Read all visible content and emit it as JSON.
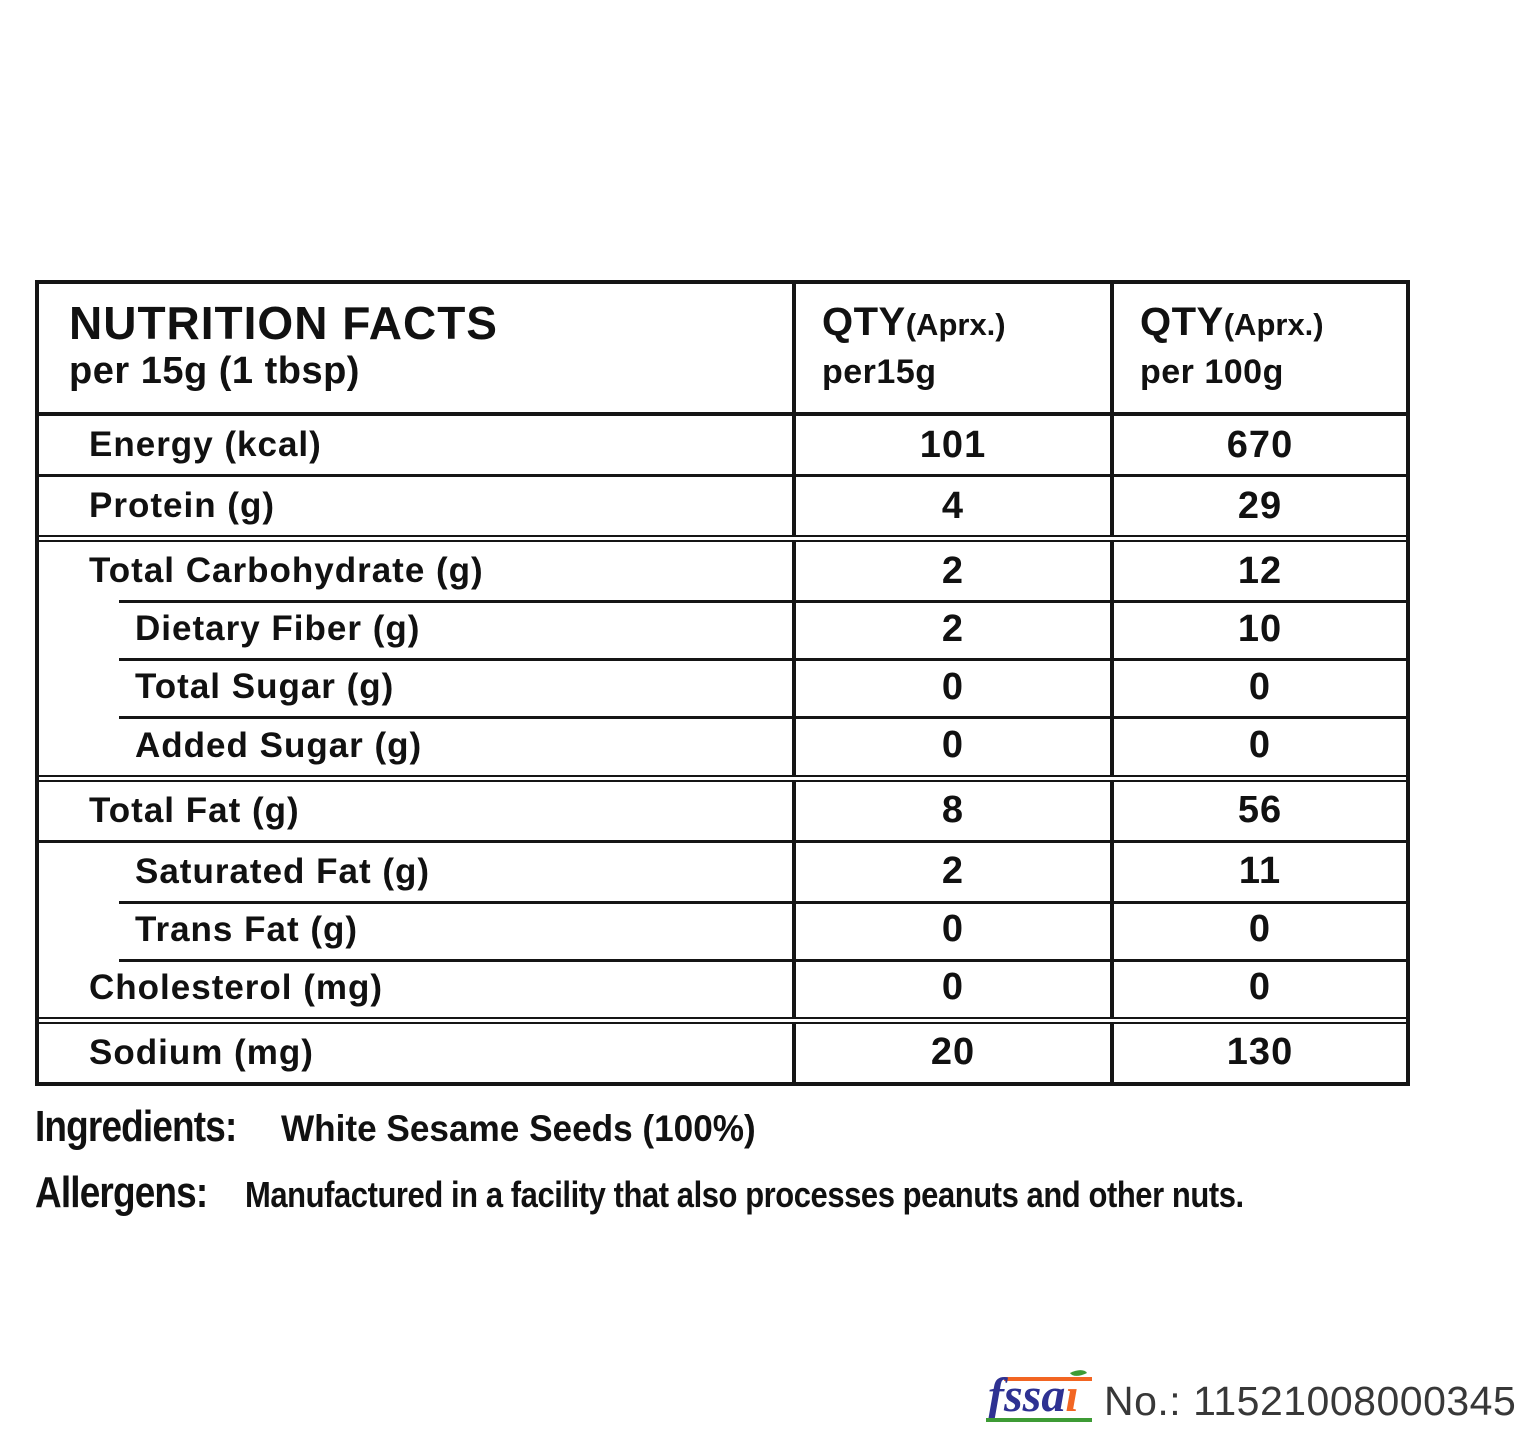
{
  "table": {
    "header": {
      "title": "NUTRITION FACTS",
      "subtitle": "per 15g (1 tbsp)",
      "col_per15g": {
        "qty": "QTY",
        "aprx": "(Aprx.)",
        "per": "per15g"
      },
      "col_per100g": {
        "qty": "QTY",
        "aprx": "(Aprx.)",
        "per": "per 100g"
      }
    },
    "rows": [
      {
        "label": "Energy (kcal)",
        "per15g": "101",
        "per100g": "670"
      },
      {
        "label": "Protein (g)",
        "per15g": "4",
        "per100g": "29"
      },
      {
        "label": "Total Carbohydrate (g)",
        "per15g": "2",
        "per100g": "12"
      },
      {
        "label": "Dietary Fiber (g)",
        "per15g": "2",
        "per100g": "10"
      },
      {
        "label": "Total Sugar (g)",
        "per15g": "0",
        "per100g": "0"
      },
      {
        "label": "Added Sugar (g)",
        "per15g": "0",
        "per100g": "0"
      },
      {
        "label": "Total Fat (g)",
        "per15g": "8",
        "per100g": "56"
      },
      {
        "label": "Saturated Fat (g)",
        "per15g": "2",
        "per100g": "11"
      },
      {
        "label": "Trans Fat (g)",
        "per15g": "0",
        "per100g": "0"
      },
      {
        "label": "Cholesterol (mg)",
        "per15g": "0",
        "per100g": "0"
      },
      {
        "label": "Sodium (mg)",
        "per15g": "20",
        "per100g": "130"
      }
    ]
  },
  "ingredients": {
    "label": "Ingredients:",
    "text": "White Sesame Seeds (100%)"
  },
  "allergens": {
    "label": "Allergens:",
    "text": "Manufactured in a facility that also processes peanuts and other nuts."
  },
  "footer": {
    "fssai_part1": "fssa",
    "fssai_part2": "ı",
    "license_number": "No.: 11521008000345"
  },
  "colors": {
    "border_black": "#151515",
    "fssai_blue": "#2e3192",
    "fssai_orange": "#f26522",
    "fssai_green": "#3d9b35"
  }
}
